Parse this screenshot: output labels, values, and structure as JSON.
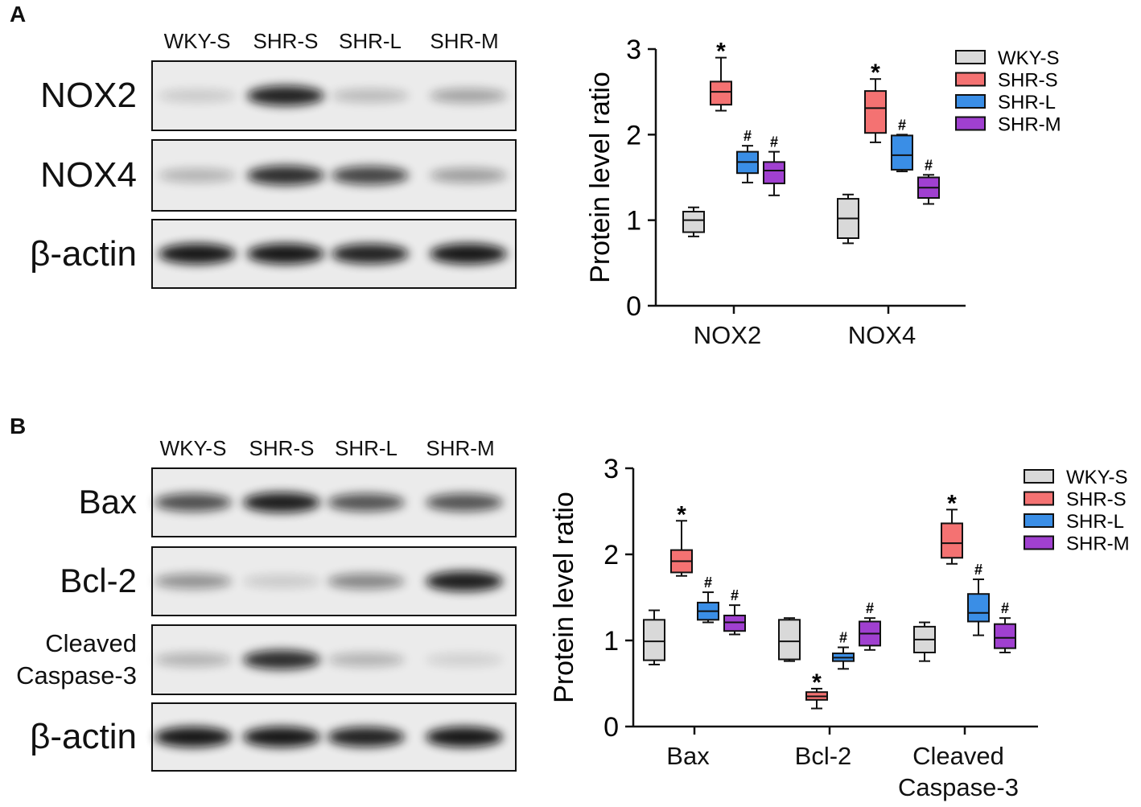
{
  "panels": [
    {
      "label": "A",
      "blot": {
        "lanes": [
          "WKY-S",
          "SHR-S",
          "SHR-L",
          "SHR-M"
        ],
        "rows": [
          "NOX2",
          "NOX4",
          "β-actin"
        ]
      }
    },
    {
      "label": "B",
      "blot": {
        "lanes": [
          "WKY-S",
          "SHR-S",
          "SHR-L",
          "SHR-M"
        ],
        "rows": [
          "Bax",
          "Bcl-2",
          "Cleaved Caspase-3",
          "β-actin"
        ]
      }
    }
  ],
  "chart_data": [
    {
      "type": "box",
      "ylabel": "Protein level ratio",
      "categories": [
        "NOX2",
        "NOX4"
      ],
      "ylim": [
        0,
        3
      ],
      "yticks": [
        0,
        1,
        2,
        3
      ],
      "legend": "top-right",
      "series": [
        {
          "name": "WKY-S",
          "color": "#d9d9d9",
          "markers": [
            null,
            null
          ],
          "values": [
            {
              "min": 0.81,
              "q1": 0.86,
              "median": 1.0,
              "q3": 1.1,
              "max": 1.15
            },
            {
              "min": 0.73,
              "q1": 0.79,
              "median": 1.02,
              "q3": 1.25,
              "max": 1.3
            }
          ]
        },
        {
          "name": "SHR-S",
          "color": "#f47272",
          "markers": [
            "*",
            "*"
          ],
          "values": [
            {
              "min": 2.28,
              "q1": 2.35,
              "median": 2.5,
              "q3": 2.62,
              "max": 2.9
            },
            {
              "min": 1.91,
              "q1": 2.02,
              "median": 2.31,
              "q3": 2.51,
              "max": 2.65
            }
          ]
        },
        {
          "name": "SHR-L",
          "color": "#3a8ee6",
          "markers": [
            "#",
            "#"
          ],
          "values": [
            {
              "min": 1.44,
              "q1": 1.55,
              "median": 1.68,
              "q3": 1.8,
              "max": 1.87
            },
            {
              "min": 1.57,
              "q1": 1.59,
              "median": 1.76,
              "q3": 1.99,
              "max": 2.0
            }
          ]
        },
        {
          "name": "SHR-M",
          "color": "#a040d0",
          "markers": [
            "#",
            "#"
          ],
          "values": [
            {
              "min": 1.29,
              "q1": 1.43,
              "median": 1.58,
              "q3": 1.68,
              "max": 1.8
            },
            {
              "min": 1.19,
              "q1": 1.26,
              "median": 1.38,
              "q3": 1.5,
              "max": 1.53
            }
          ]
        }
      ]
    },
    {
      "type": "box",
      "ylabel": "Protein level ratio",
      "categories": [
        "Bax",
        "Bcl-2",
        "Cleaved Caspase-3"
      ],
      "ylim": [
        0,
        3
      ],
      "yticks": [
        0,
        1,
        2,
        3
      ],
      "legend": "top-right",
      "series": [
        {
          "name": "WKY-S",
          "color": "#d9d9d9",
          "markers": [
            null,
            null,
            null
          ],
          "values": [
            {
              "min": 0.72,
              "q1": 0.77,
              "median": 0.99,
              "q3": 1.24,
              "max": 1.35
            },
            {
              "min": 0.76,
              "q1": 0.78,
              "median": 0.99,
              "q3": 1.24,
              "max": 1.26
            },
            {
              "min": 0.76,
              "q1": 0.86,
              "median": 1.01,
              "q3": 1.16,
              "max": 1.21
            }
          ]
        },
        {
          "name": "SHR-S",
          "color": "#f47272",
          "markers": [
            "*",
            "*",
            "*"
          ],
          "values": [
            {
              "min": 1.75,
              "q1": 1.79,
              "median": 1.92,
              "q3": 2.05,
              "max": 2.39
            },
            {
              "min": 0.21,
              "q1": 0.31,
              "median": 0.35,
              "q3": 0.4,
              "max": 0.44
            },
            {
              "min": 1.89,
              "q1": 1.96,
              "median": 2.13,
              "q3": 2.36,
              "max": 2.52
            }
          ]
        },
        {
          "name": "SHR-L",
          "color": "#3a8ee6",
          "markers": [
            "#",
            "#",
            "#"
          ],
          "values": [
            {
              "min": 1.21,
              "q1": 1.24,
              "median": 1.34,
              "q3": 1.44,
              "max": 1.56
            },
            {
              "min": 0.67,
              "q1": 0.76,
              "median": 0.8,
              "q3": 0.85,
              "max": 0.92
            },
            {
              "min": 1.06,
              "q1": 1.22,
              "median": 1.32,
              "q3": 1.54,
              "max": 1.71
            }
          ]
        },
        {
          "name": "SHR-M",
          "color": "#a040d0",
          "markers": [
            "#",
            "#",
            "#"
          ],
          "values": [
            {
              "min": 1.07,
              "q1": 1.11,
              "median": 1.21,
              "q3": 1.29,
              "max": 1.41
            },
            {
              "min": 0.89,
              "q1": 0.94,
              "median": 1.08,
              "q3": 1.22,
              "max": 1.26
            },
            {
              "min": 0.86,
              "q1": 0.91,
              "median": 1.03,
              "q3": 1.19,
              "max": 1.26
            }
          ]
        }
      ]
    }
  ]
}
